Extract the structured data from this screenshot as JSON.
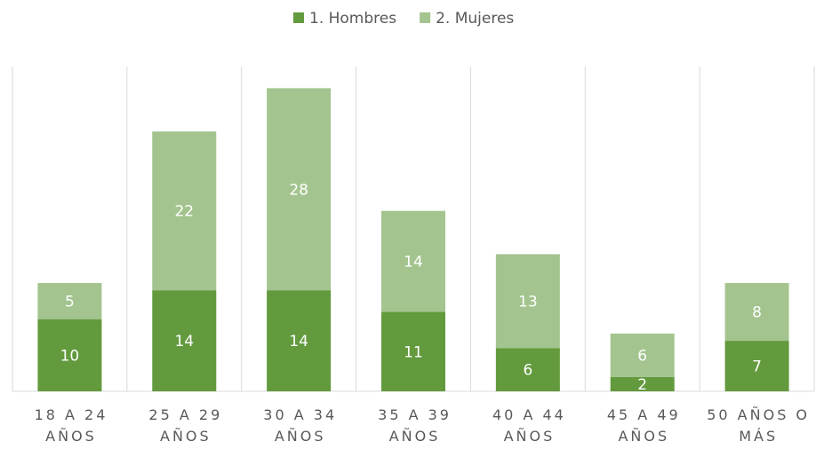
{
  "chart_data": {
    "type": "stacked_bar",
    "categories": [
      "18 A 24 AÑOS",
      "25 A 29 AÑOS",
      "30 A 34 AÑOS",
      "35 A 39 AÑOS",
      "40 A 44 AÑOS",
      "45 A 49 AÑOS",
      "50 AÑOS O MÁS"
    ],
    "series": [
      {
        "name": "1. Hombres",
        "color": "#629a3d",
        "values": [
          10,
          14,
          14,
          11,
          6,
          2,
          7
        ]
      },
      {
        "name": "2. Mujeres",
        "color": "#a3c48e",
        "values": [
          5,
          22,
          28,
          14,
          13,
          6,
          8
        ]
      }
    ],
    "ylim": [
      0,
      45
    ],
    "legend": "top"
  }
}
